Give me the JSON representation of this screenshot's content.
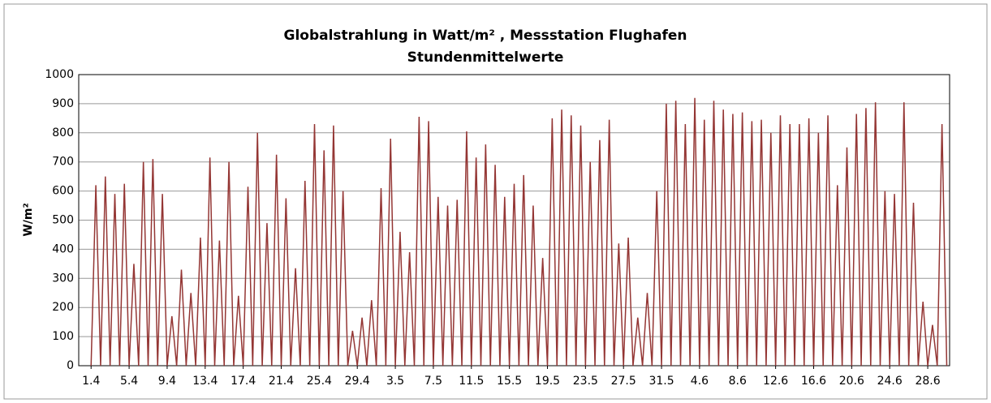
{
  "chart_data": {
    "type": "line",
    "title": "Globalstrahlung in Watt/m² , Messstation Flughafen",
    "subtitle": "Stundenmittelwerte",
    "ylabel": "W/m²",
    "x": [
      0,
      0.5,
      1,
      1.5,
      2,
      2.5,
      3,
      3.5,
      4,
      4.5,
      5,
      5.5,
      6,
      6.5,
      7,
      7.5,
      8,
      8.5,
      9,
      9.5,
      10,
      10.5,
      11,
      11.5,
      12,
      12.5,
      13,
      13.5,
      14,
      14.5,
      15,
      15.5,
      16,
      16.5,
      17,
      17.5,
      18,
      18.5,
      19,
      19.5,
      20,
      20.5,
      21,
      21.5,
      22,
      22.5,
      23,
      23.5,
      24,
      24.5,
      25,
      25.5,
      26,
      26.5,
      27,
      27.5,
      28,
      28.5,
      29,
      29.5,
      30,
      30.5,
      31,
      31.5,
      32,
      32.5,
      33,
      33.5,
      34,
      34.5,
      35,
      35.5,
      36,
      36.5,
      37,
      37.5,
      38,
      38.5,
      39,
      39.5,
      40,
      40.5,
      41,
      41.5,
      42,
      42.5,
      43,
      43.5,
      44,
      44.5,
      45,
      45.5,
      46,
      46.5,
      47,
      47.5,
      48,
      48.5,
      49,
      49.5,
      50,
      50.5,
      51,
      51.5,
      52,
      52.5,
      53,
      53.5,
      54,
      54.5,
      55,
      55.5,
      56,
      56.5,
      57,
      57.5,
      58,
      58.5,
      59,
      59.5,
      60,
      60.5,
      61,
      61.5,
      62,
      62.5,
      63,
      63.5,
      64,
      64.5,
      65,
      65.5,
      66,
      66.5,
      67,
      67.5,
      68,
      68.5,
      69,
      69.5,
      70,
      70.5,
      71,
      71.5,
      72,
      72.5,
      73,
      73.5,
      74,
      74.5,
      75,
      75.5,
      76,
      76.5,
      77,
      77.5,
      78,
      78.5,
      79,
      79.5,
      80,
      80.5,
      81,
      81.5,
      82,
      82.5,
      83,
      83.5,
      84,
      84.5,
      85,
      85.5,
      86,
      86.5,
      87,
      87.5,
      88,
      88.5,
      89,
      89.5,
      90
    ],
    "series": [
      {
        "name": "Globalstrahlung",
        "color": "#943634",
        "values": [
          0,
          620,
          0,
          650,
          0,
          590,
          0,
          625,
          0,
          350,
          0,
          700,
          0,
          710,
          0,
          590,
          0,
          170,
          0,
          330,
          0,
          250,
          0,
          440,
          0,
          715,
          0,
          430,
          0,
          700,
          0,
          240,
          0,
          615,
          0,
          800,
          0,
          490,
          0,
          725,
          0,
          575,
          0,
          335,
          0,
          635,
          0,
          830,
          0,
          740,
          0,
          825,
          0,
          600,
          0,
          120,
          0,
          165,
          0,
          225,
          0,
          610,
          0,
          780,
          0,
          460,
          0,
          390,
          0,
          855,
          0,
          840,
          0,
          580,
          0,
          550,
          0,
          570,
          0,
          805,
          0,
          715,
          0,
          760,
          0,
          690,
          0,
          580,
          0,
          625,
          0,
          655,
          0,
          550,
          0,
          370,
          0,
          850,
          0,
          880,
          0,
          860,
          0,
          825,
          0,
          700,
          0,
          775,
          0,
          845,
          0,
          420,
          0,
          440,
          0,
          165,
          0,
          250,
          0,
          600,
          0,
          900,
          0,
          910,
          0,
          830,
          0,
          920,
          0,
          845,
          0,
          910,
          0,
          880,
          0,
          865,
          0,
          870,
          0,
          840,
          0,
          845,
          0,
          800,
          0,
          860,
          0,
          830,
          0,
          830,
          0,
          850,
          0,
          800,
          0,
          860,
          0,
          620,
          0,
          750,
          0,
          865,
          0,
          885,
          0,
          905,
          0,
          600,
          0,
          590,
          0,
          905,
          0,
          560,
          0,
          220,
          0,
          140,
          0,
          830,
          0
        ]
      }
    ],
    "xlim": [
      -1.3,
      90.3
    ],
    "xticks": [
      {
        "value": 0,
        "label": "1.4"
      },
      {
        "value": 4,
        "label": "5.4"
      },
      {
        "value": 8,
        "label": "9.4"
      },
      {
        "value": 12,
        "label": "13.4"
      },
      {
        "value": 16,
        "label": "17.4"
      },
      {
        "value": 20,
        "label": "21.4"
      },
      {
        "value": 24,
        "label": "25.4"
      },
      {
        "value": 28,
        "label": "29.4"
      },
      {
        "value": 32,
        "label": "3.5"
      },
      {
        "value": 36,
        "label": "7.5"
      },
      {
        "value": 40,
        "label": "11.5"
      },
      {
        "value": 44,
        "label": "15.5"
      },
      {
        "value": 48,
        "label": "19.5"
      },
      {
        "value": 52,
        "label": "23.5"
      },
      {
        "value": 56,
        "label": "27.5"
      },
      {
        "value": 60,
        "label": "31.5"
      },
      {
        "value": 64,
        "label": "4.6"
      },
      {
        "value": 68,
        "label": "8.6"
      },
      {
        "value": 72,
        "label": "12.6"
      },
      {
        "value": 76,
        "label": "16.6"
      },
      {
        "value": 80,
        "label": "20.6"
      },
      {
        "value": 84,
        "label": "24.6"
      },
      {
        "value": 88,
        "label": "28.6"
      }
    ],
    "ylim": [
      0,
      1000
    ],
    "yticks": [
      0,
      100,
      200,
      300,
      400,
      500,
      600,
      700,
      800,
      900,
      1000
    ],
    "grid": true
  }
}
